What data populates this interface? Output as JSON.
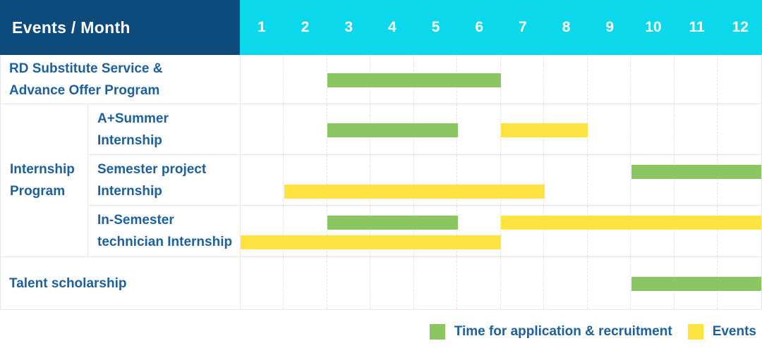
{
  "header": {
    "corner_label": "Events / Month",
    "months": [
      "1",
      "2",
      "3",
      "4",
      "5",
      "6",
      "7",
      "8",
      "9",
      "10",
      "11",
      "12"
    ]
  },
  "rows": {
    "rd": {
      "label_line1": "RD Substitute Service &",
      "label_line2": "Advance Offer Program",
      "bars": [
        {
          "kind": "recruitment",
          "lane": "single",
          "start": 3,
          "end": 6
        }
      ]
    },
    "group": {
      "line1": "Internship",
      "line2": "Program"
    },
    "a_summer": {
      "label_line1": "A+Summer",
      "label_line2": "Internship",
      "bars": [
        {
          "kind": "recruitment",
          "lane": "single",
          "start": 3,
          "end": 5
        },
        {
          "kind": "event",
          "lane": "single",
          "start": 7,
          "end": 8
        }
      ]
    },
    "semester_project": {
      "label_line1": "Semester project",
      "label_line2": "Internship",
      "bars": [
        {
          "kind": "recruitment",
          "lane": "top",
          "start": 10,
          "end": 12
        },
        {
          "kind": "event",
          "lane": "bottom",
          "start": 2,
          "end": 7
        }
      ]
    },
    "in_semester": {
      "label_line1": "In-Semester",
      "label_line2": "technician Internship",
      "bars": [
        {
          "kind": "recruitment",
          "lane": "top",
          "start": 3,
          "end": 5
        },
        {
          "kind": "event",
          "lane": "top",
          "start": 7,
          "end": 12
        },
        {
          "kind": "event",
          "lane": "bottom",
          "start": 1,
          "end": 6
        }
      ]
    },
    "talent": {
      "label": "Talent scholarship",
      "bars": [
        {
          "kind": "recruitment",
          "lane": "single",
          "start": 10,
          "end": 12
        }
      ]
    }
  },
  "legend": [
    {
      "kind": "recruitment",
      "label": "Time for application & recruitment"
    },
    {
      "kind": "event",
      "label": "Events"
    }
  ],
  "colors": {
    "navy": "#0D4B7D",
    "cyan": "#0BD8EB",
    "green": "#8CC663",
    "yellow": "#FFE441",
    "label_blue": "#1D609E",
    "grid": "#E7E7E7",
    "grid_dash": "#E3E3E3"
  },
  "months_in_year": 12,
  "chart_data": {
    "type": "bar",
    "subtype": "gantt-schedule",
    "title": "Events / Month",
    "x_axis": {
      "label": "Month",
      "ticks": [
        1,
        2,
        3,
        4,
        5,
        6,
        7,
        8,
        9,
        10,
        11,
        12
      ],
      "range": [
        1,
        12
      ]
    },
    "grid": true,
    "legend_position": "bottom-right",
    "legend": [
      "Time for application & recruitment",
      "Events"
    ],
    "series": [
      {
        "row": "RD Substitute Service & Advance Offer Program",
        "segments": [
          {
            "category": "Time for application & recruitment",
            "start_month": 3,
            "end_month": 6
          }
        ]
      },
      {
        "row": "Internship Program - A+Summer Internship",
        "segments": [
          {
            "category": "Time for application & recruitment",
            "start_month": 3,
            "end_month": 5
          },
          {
            "category": "Events",
            "start_month": 7,
            "end_month": 8
          }
        ]
      },
      {
        "row": "Internship Program - Semester project Internship",
        "segments": [
          {
            "category": "Time for application & recruitment",
            "start_month": 10,
            "end_month": 12
          },
          {
            "category": "Events",
            "start_month": 2,
            "end_month": 7
          }
        ]
      },
      {
        "row": "Internship Program - In-Semester technician Internship",
        "segments": [
          {
            "category": "Time for application & recruitment",
            "start_month": 3,
            "end_month": 5
          },
          {
            "category": "Events",
            "start_month": 7,
            "end_month": 12
          },
          {
            "category": "Events",
            "start_month": 1,
            "end_month": 6
          }
        ]
      },
      {
        "row": "Talent scholarship",
        "segments": [
          {
            "category": "Time for application & recruitment",
            "start_month": 10,
            "end_month": 12
          }
        ]
      }
    ]
  }
}
